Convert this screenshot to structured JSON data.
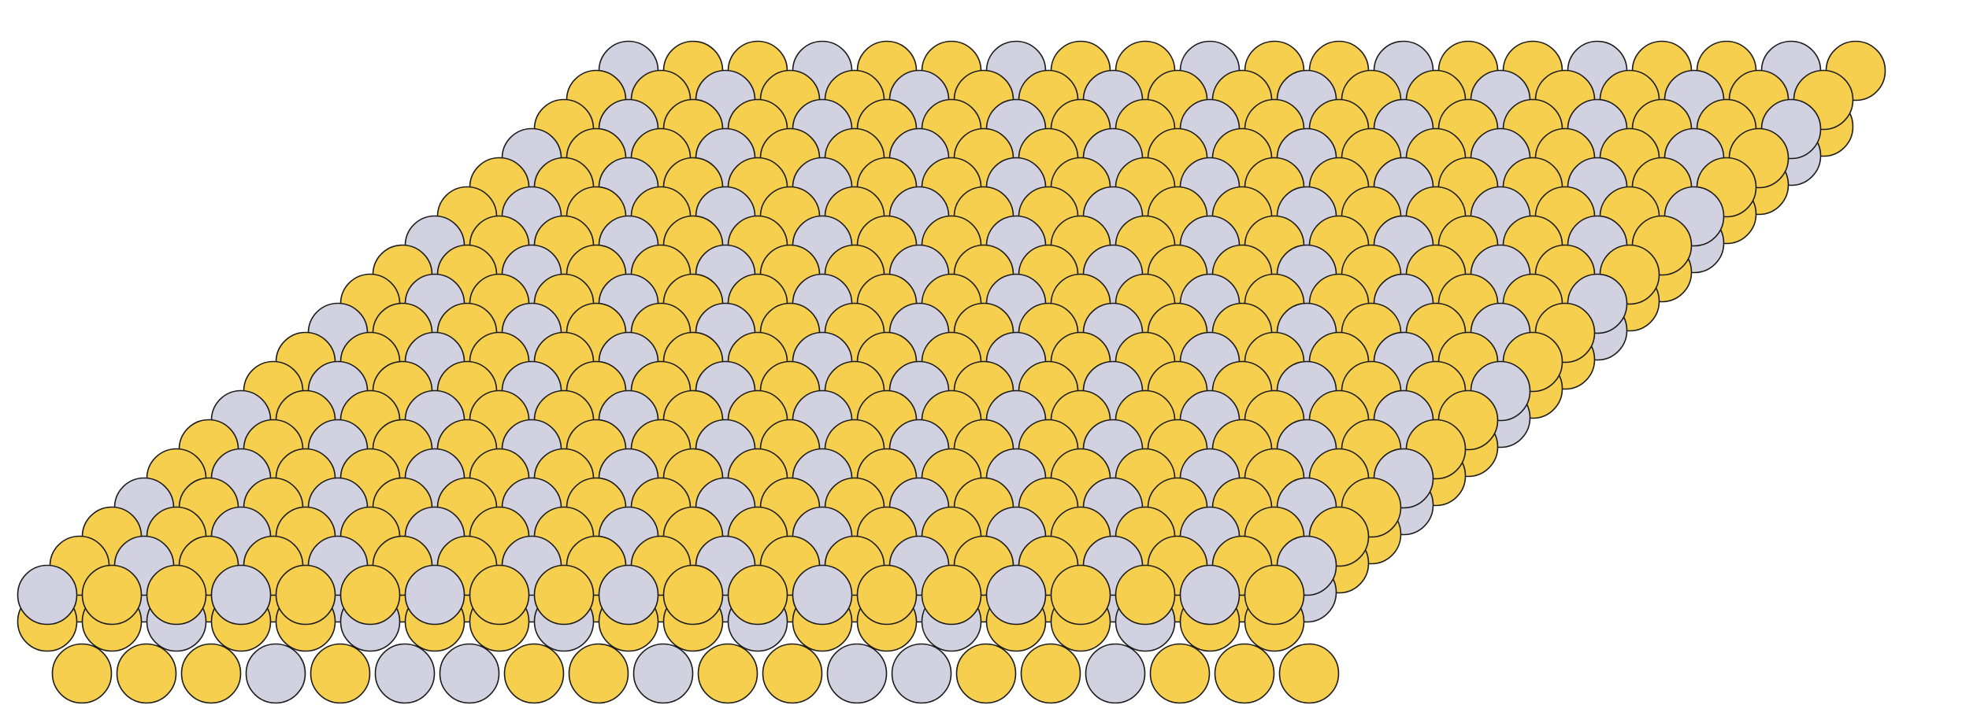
{
  "diagram": {
    "kind": "atomic-slab-lattice",
    "view": "oblique",
    "legend": "none",
    "text_labels": [],
    "atom_types": [
      {
        "id": "A",
        "color": "#f5cf4d"
      },
      {
        "id": "B",
        "color": "#d2d1df"
      }
    ],
    "outline_color": "#1a1a1a",
    "layers": [
      {
        "id": "bottom",
        "rows": 1,
        "columns": 20,
        "sequence": [
          "A",
          "A",
          "A",
          "B",
          "A",
          "B",
          "B",
          "A",
          "A",
          "B",
          "A",
          "A",
          "B",
          "B",
          "A",
          "A",
          "B",
          "A",
          "A",
          "A"
        ]
      },
      {
        "id": "middle",
        "rows": 18,
        "columns": 20,
        "pattern": [
          "A",
          "A",
          "B"
        ],
        "row_shift": 1
      },
      {
        "id": "top",
        "rows": 19,
        "columns": 20,
        "pattern": [
          "B",
          "A",
          "A"
        ],
        "row_shift": 2
      }
    ]
  }
}
